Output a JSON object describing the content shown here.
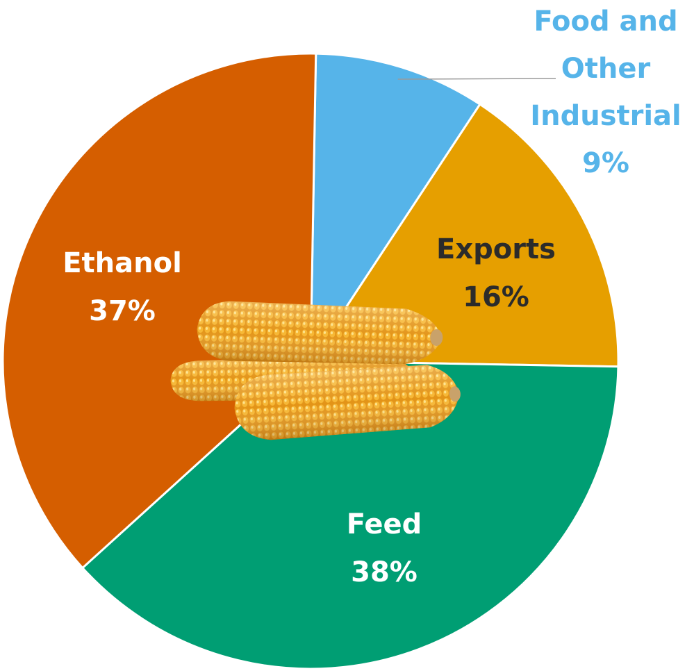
{
  "chart_data": {
    "type": "pie",
    "title": "",
    "slices": [
      {
        "label_lines": [
          "Food and",
          "Other",
          "Industrial"
        ],
        "percent_label": "9%",
        "value": 9,
        "color": "#56b4e9",
        "text_color": "#56b4e9",
        "outside": true
      },
      {
        "label_lines": [
          "Exports"
        ],
        "percent_label": "16%",
        "value": 16,
        "color": "#e69f00",
        "text_color": "#2b2b2b",
        "outside": false
      },
      {
        "label_lines": [
          "Feed"
        ],
        "percent_label": "38%",
        "value": 38,
        "color": "#009e73",
        "text_color": "#ffffff",
        "outside": false
      },
      {
        "label_lines": [
          "Ethanol"
        ],
        "percent_label": "37%",
        "value": 37,
        "color": "#d55e00",
        "text_color": "#ffffff",
        "outside": false
      }
    ],
    "center_image": "corn-cobs"
  }
}
